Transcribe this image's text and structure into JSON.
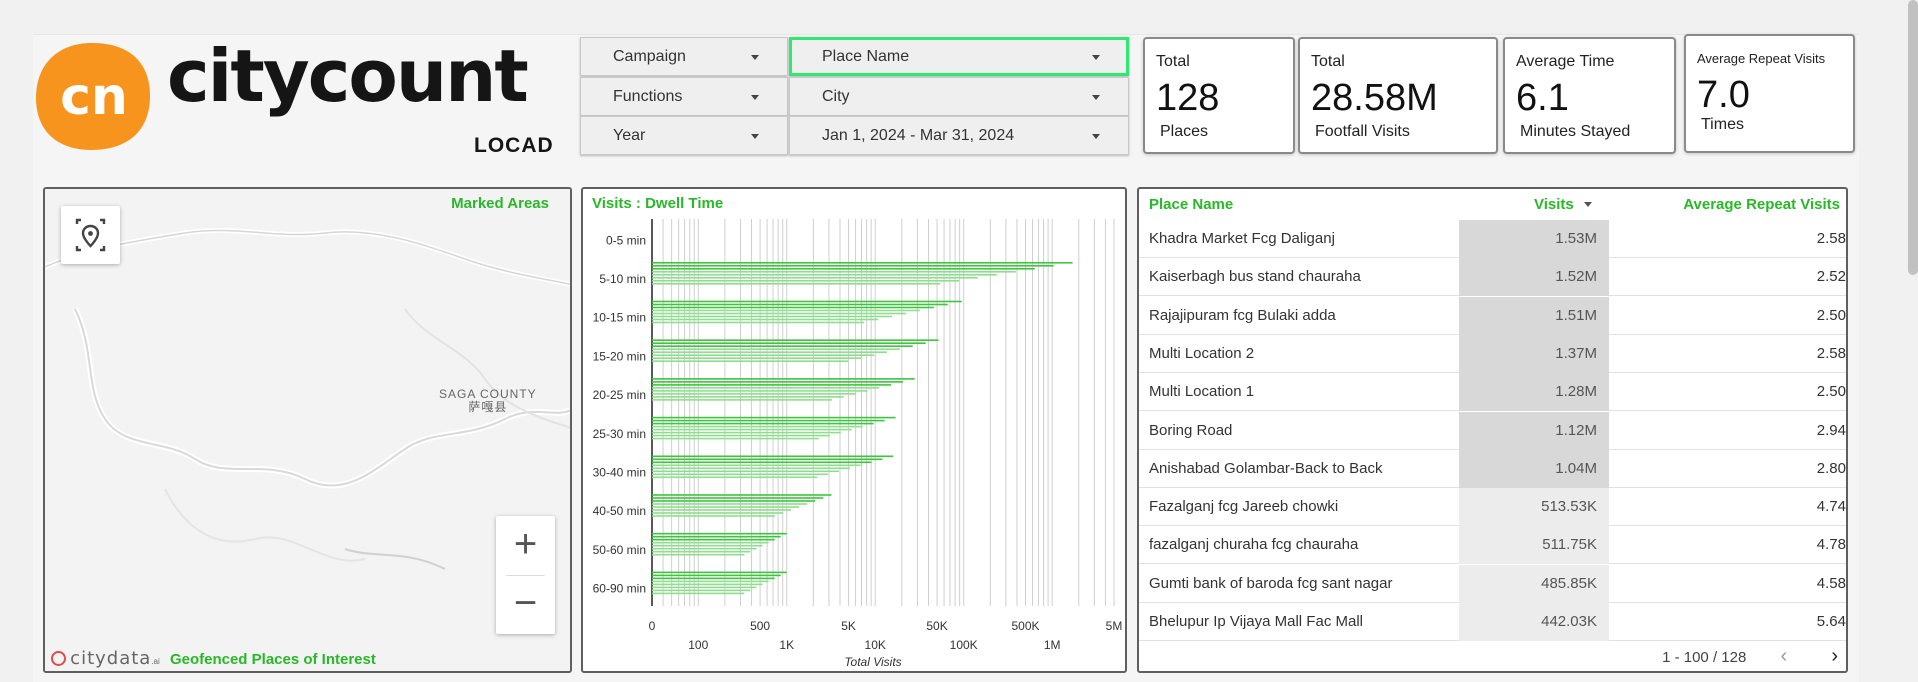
{
  "brand": {
    "logo_badge": "cn",
    "logo_word": "citycount",
    "logo_sub": "LOCAD",
    "badge_color": "#f7941d"
  },
  "filters": {
    "campaign": "Campaign",
    "place_name": "Place Name",
    "functions": "Functions",
    "city": "City",
    "year": "Year",
    "date_range": "Jan 1, 2024 - Mar 31, 2024"
  },
  "kpis": [
    {
      "label": "Total",
      "value": "128",
      "sub": "Places"
    },
    {
      "label": "Total",
      "value": "28.58M",
      "sub": "Footfall Visits"
    },
    {
      "label": "Average Time",
      "value": "6.1",
      "sub": "Minutes Stayed"
    },
    {
      "label": "Average Repeat Visits",
      "value": "7.0",
      "sub": "Times"
    }
  ],
  "map": {
    "title": "Marked Areas",
    "county_label": "SAGA COUNTY",
    "county_label_local": "萨嘎县",
    "zoom_in": "+",
    "zoom_out": "−",
    "footer_brand": "citydata",
    "footer_brand_suffix": ".ai",
    "footer_label": "Geofenced Places of Interest",
    "icons": [
      "location-target-icon",
      "zoom-in-icon",
      "zoom-out-icon"
    ]
  },
  "chart_data": {
    "type": "bar",
    "title": "Visits : Dwell Time",
    "xlabel": "Total Visits",
    "ylabel": "",
    "x_scale": "log",
    "xlim": [
      0,
      5000000
    ],
    "categories": [
      "0-5 min",
      "5-10 min",
      "10-15 min",
      "15-20 min",
      "20-25 min",
      "25-30 min",
      "30-40 min",
      "40-50 min",
      "50-60 min",
      "60-90 min"
    ],
    "values": [
      0,
      1700000,
      95000,
      52000,
      28000,
      17000,
      16000,
      3200,
      1000,
      1000
    ],
    "x_ticks_top": [
      "0",
      "500",
      "5K",
      "50K",
      "500K",
      "5M"
    ],
    "x_ticks_bottom": [
      "100",
      "1K",
      "10K",
      "100K",
      "1M"
    ],
    "bar_color": "#3fc43f"
  },
  "table": {
    "columns": {
      "name": "Place Name",
      "visits": "Visits",
      "repeat": "Average Repeat Visits"
    },
    "rows": [
      {
        "name": "Khadra Market Fcg Daliganj",
        "visits": "1.53M",
        "repeat": "2.58"
      },
      {
        "name": "Kaiserbagh bus stand chauraha",
        "visits": "1.52M",
        "repeat": "2.52"
      },
      {
        "name": "Rajajipuram fcg Bulaki adda",
        "visits": "1.51M",
        "repeat": "2.50"
      },
      {
        "name": "Multi Location 2",
        "visits": "1.37M",
        "repeat": "2.58"
      },
      {
        "name": "Multi Location 1",
        "visits": "1.28M",
        "repeat": "2.50"
      },
      {
        "name": "Boring Road",
        "visits": "1.12M",
        "repeat": "2.94"
      },
      {
        "name": "Anishabad Golambar-Back to Back",
        "visits": "1.04M",
        "repeat": "2.80"
      },
      {
        "name": "Fazalganj fcg Jareeb chowki",
        "visits": "513.53K",
        "repeat": "4.74"
      },
      {
        "name": "fazalganj churaha fcg chauraha",
        "visits": "511.75K",
        "repeat": "4.78"
      },
      {
        "name": "Gumti bank of baroda fcg sant nagar",
        "visits": "485.85K",
        "repeat": "4.58"
      },
      {
        "name": "Bhelupur Ip Vijaya Mall Fac Mall",
        "visits": "442.03K",
        "repeat": "5.64"
      }
    ],
    "visit_fills": [
      1.53,
      1.52,
      1.51,
      1.37,
      1.28,
      1.12,
      1.04,
      0.51353,
      0.51175,
      0.48585,
      0.44203
    ],
    "pager": "1 - 100 / 128",
    "prev_icon": "chevron-left-icon",
    "next_icon": "chevron-right-icon"
  }
}
